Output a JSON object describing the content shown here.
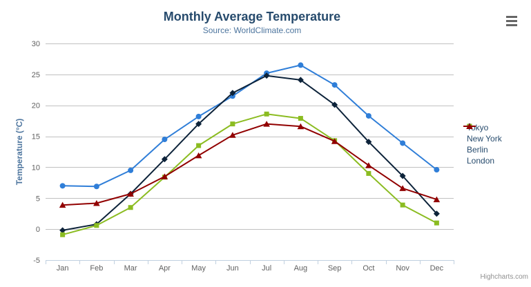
{
  "chart_data": {
    "type": "line",
    "title": "Monthly Average Temperature",
    "subtitle": "Source: WorldClimate.com",
    "xlabel": "",
    "ylabel": "Temperature (°C)",
    "categories": [
      "Jan",
      "Feb",
      "Mar",
      "Apr",
      "May",
      "Jun",
      "Jul",
      "Aug",
      "Sep",
      "Oct",
      "Nov",
      "Dec"
    ],
    "series": [
      {
        "name": "Tokyo",
        "color": "#2f7ed8",
        "marker": "circle",
        "values": [
          7.0,
          6.9,
          9.5,
          14.5,
          18.2,
          21.5,
          25.2,
          26.5,
          23.3,
          18.3,
          13.9,
          9.6
        ]
      },
      {
        "name": "New York",
        "color": "#0d233a",
        "marker": "diamond",
        "values": [
          -0.2,
          0.8,
          5.7,
          11.3,
          17.0,
          22.0,
          24.8,
          24.1,
          20.1,
          14.1,
          8.6,
          2.5
        ]
      },
      {
        "name": "Berlin",
        "color": "#8bbc21",
        "marker": "square",
        "values": [
          -0.9,
          0.6,
          3.5,
          8.4,
          13.5,
          17.0,
          18.6,
          17.9,
          14.3,
          9.0,
          3.9,
          1.0
        ]
      },
      {
        "name": "London",
        "color": "#910000",
        "marker": "triangle",
        "values": [
          3.9,
          4.2,
          5.7,
          8.5,
          11.9,
          15.2,
          17.0,
          16.6,
          14.2,
          10.3,
          6.6,
          4.8
        ]
      }
    ],
    "ylim": [
      -5,
      30
    ],
    "ytick_step": 5,
    "yticks": [
      -5,
      0,
      5,
      10,
      15,
      20,
      25,
      30
    ],
    "grid": true,
    "legend_position": "right-middle",
    "colors": {
      "title": "#274b6d",
      "subtitle": "#4d759e",
      "axis_title": "#4d759e",
      "axis_labels": "#606060",
      "gridline": "#c0c0c0",
      "axis_line": "#c0d0e0",
      "legend_text": "#274b6d",
      "credit_text": "#909090",
      "menu_icon": "#666666"
    }
  },
  "credit": {
    "label": "Highcharts.com"
  }
}
